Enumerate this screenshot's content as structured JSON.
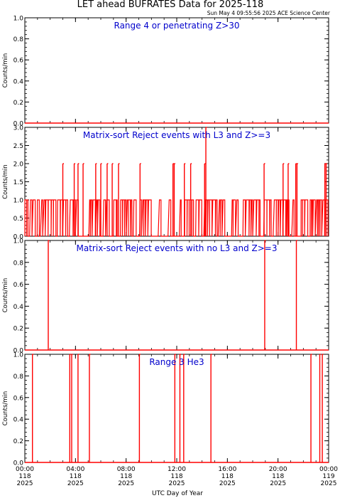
{
  "title": "LET ahead BUFRATES Data for 2025-118",
  "timestamp": "Sun May  4 09:55:56 2025 ACE Science Center",
  "colors": {
    "trace": "#ff0000",
    "panel_label": "#0000cc",
    "axis": "#000000",
    "background": "#ffffff"
  },
  "chart_data": [
    {
      "type": "line",
      "title": "Range 4 or  penetrating Z>30",
      "ylabel": "Counts/min",
      "ylim": [
        0,
        1
      ],
      "yticks": [
        "0.0",
        "0.2",
        "0.4",
        "0.6",
        "0.8",
        "1.0"
      ],
      "xlim": [
        0,
        24
      ],
      "spikes": []
    },
    {
      "type": "line",
      "title": "Matrix-sort Reject events with L3 and Z>=3",
      "ylabel": "Counts/min",
      "ylim": [
        0,
        3
      ],
      "yticks": [
        "0.0",
        "0.5",
        "1.0",
        "1.5",
        "2.0",
        "2.5",
        "3.0"
      ],
      "xlim": [
        0,
        24
      ],
      "dense_baseline": 1,
      "spikes": [
        {
          "x": 3.0,
          "y": 2
        },
        {
          "x": 3.9,
          "y": 2
        },
        {
          "x": 4.2,
          "y": 2
        },
        {
          "x": 4.6,
          "y": 2
        },
        {
          "x": 5.6,
          "y": 2
        },
        {
          "x": 6.0,
          "y": 2
        },
        {
          "x": 6.5,
          "y": 2
        },
        {
          "x": 6.9,
          "y": 2
        },
        {
          "x": 7.4,
          "y": 2
        },
        {
          "x": 9.1,
          "y": 2
        },
        {
          "x": 11.7,
          "y": 2
        },
        {
          "x": 11.8,
          "y": 2
        },
        {
          "x": 12.6,
          "y": 2
        },
        {
          "x": 13.1,
          "y": 2
        },
        {
          "x": 14.2,
          "y": 2
        },
        {
          "x": 14.3,
          "y": 3
        },
        {
          "x": 18.9,
          "y": 2
        },
        {
          "x": 20.4,
          "y": 2
        },
        {
          "x": 20.8,
          "y": 2
        },
        {
          "x": 21.4,
          "y": 2
        },
        {
          "x": 21.5,
          "y": 2
        },
        {
          "x": 23.7,
          "y": 2
        },
        {
          "x": 23.8,
          "y": 2
        }
      ]
    },
    {
      "type": "line",
      "title": "Matrix-sort Reject events with no L3 and Z>=3",
      "ylabel": "Counts/min",
      "ylim": [
        0,
        1
      ],
      "yticks": [
        "0.0",
        "0.2",
        "0.4",
        "0.6",
        "0.8",
        "1.0"
      ],
      "xlim": [
        0,
        24
      ],
      "spikes": [
        {
          "x": 1.85,
          "y": 1
        },
        {
          "x": 18.95,
          "y": 1
        },
        {
          "x": 21.45,
          "y": 1
        }
      ]
    },
    {
      "type": "line",
      "title": "Range 3 He3",
      "ylabel": "Counts/min",
      "ylim": [
        0,
        1
      ],
      "yticks": [
        "0.0",
        "0.2",
        "0.4",
        "0.6",
        "0.8",
        "1.0"
      ],
      "xlim": [
        0,
        24
      ],
      "spikes": [
        {
          "x": 0.6,
          "y": 1
        },
        {
          "x": 3.55,
          "y": 1
        },
        {
          "x": 3.7,
          "y": 1
        },
        {
          "x": 4.2,
          "y": 1
        },
        {
          "x": 5.1,
          "y": 1
        },
        {
          "x": 9.05,
          "y": 1
        },
        {
          "x": 11.85,
          "y": 1
        },
        {
          "x": 12.25,
          "y": 1
        },
        {
          "x": 12.55,
          "y": 1
        },
        {
          "x": 14.7,
          "y": 1
        },
        {
          "x": 22.6,
          "y": 1
        },
        {
          "x": 23.3,
          "y": 1
        },
        {
          "x": 23.5,
          "y": 1
        }
      ]
    }
  ],
  "xaxis": {
    "label": "UTC Day of Year",
    "ticks": [
      {
        "x": 0,
        "l1": "00:00",
        "l2": "118",
        "l3": "2025"
      },
      {
        "x": 4,
        "l1": "04:00",
        "l2": "118",
        "l3": "2025"
      },
      {
        "x": 8,
        "l1": "08:00",
        "l2": "118",
        "l3": "2025"
      },
      {
        "x": 12,
        "l1": "12:00",
        "l2": "118",
        "l3": "2025"
      },
      {
        "x": 16,
        "l1": "16:00",
        "l2": "118",
        "l3": "2025"
      },
      {
        "x": 20,
        "l1": "20:00",
        "l2": "118",
        "l3": "2025"
      },
      {
        "x": 24,
        "l1": "00:00",
        "l2": "119",
        "l3": "2025"
      }
    ]
  }
}
